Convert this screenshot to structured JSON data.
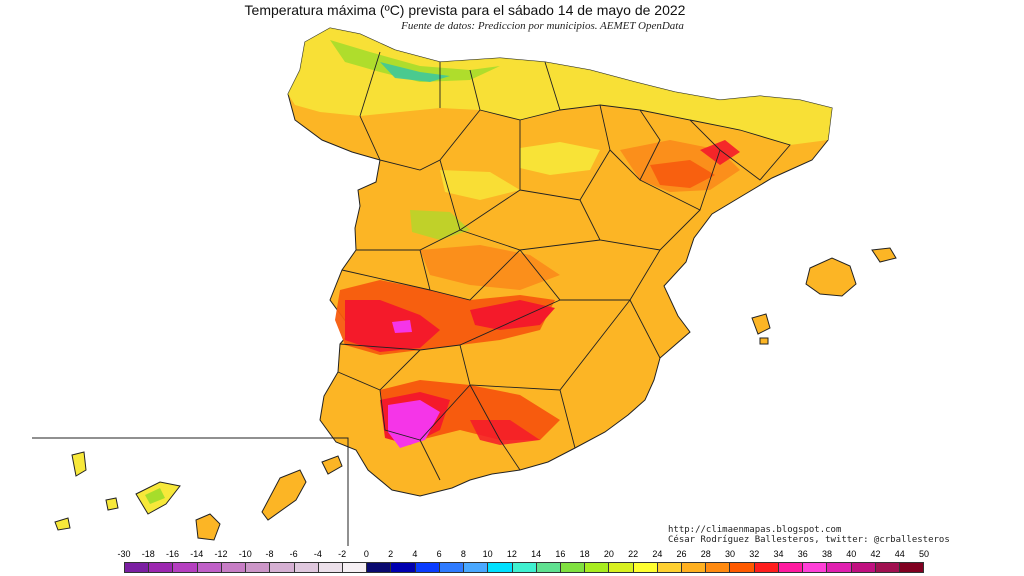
{
  "title": "Temperatura máxima (ºC) prevista para el sábado 14 de mayo de 2022",
  "subtitle": "Fuente de datos: Prediccion por municipios. AEMET OpenData",
  "credit_url": "http://climaenmapas.blogspot.com",
  "credit_author": "César Rodríguez Ballesteros, twitter: @crballesteros",
  "legend": {
    "labels": [
      "-30",
      "-18",
      "-16",
      "-14",
      "-12",
      "-10",
      "-8",
      "-6",
      "-4",
      "-2",
      "0",
      "2",
      "4",
      "6",
      "8",
      "10",
      "12",
      "14",
      "16",
      "18",
      "20",
      "22",
      "24",
      "26",
      "28",
      "30",
      "32",
      "34",
      "36",
      "38",
      "40",
      "42",
      "44",
      "50"
    ],
    "colors": [
      "#7b1fa2",
      "#9c27b0",
      "#b53fc0",
      "#c060c8",
      "#c77dc5",
      "#cc96c8",
      "#d6b0d3",
      "#e0c8de",
      "#ece0ea",
      "#f6f0f4",
      "#0a0a70",
      "#0000b0",
      "#0a3cff",
      "#2f7bff",
      "#4aa8ff",
      "#00e0ff",
      "#40f0d0",
      "#60e090",
      "#80e040",
      "#a8ec20",
      "#d8f020",
      "#ffff30",
      "#ffd030",
      "#ffb020",
      "#ff8a10",
      "#ff5a00",
      "#ff1e1e",
      "#ff1aa0",
      "#ff40d8",
      "#e020b0",
      "#c01080",
      "#a01050",
      "#800020"
    ]
  },
  "map_colors": {
    "yellow": "#f7e83a",
    "orange_light": "#fcb525",
    "orange": "#fb8b1b",
    "red_orange": "#f75b0e",
    "red": "#f41a2a",
    "magenta": "#f535e8",
    "green": "#a6dd2b",
    "teal": "#3fc89a",
    "border": "#222222"
  },
  "regions": [
    "Spain (peninsula)",
    "Balearic Islands",
    "Canary Islands",
    "Portugal (blank)"
  ]
}
